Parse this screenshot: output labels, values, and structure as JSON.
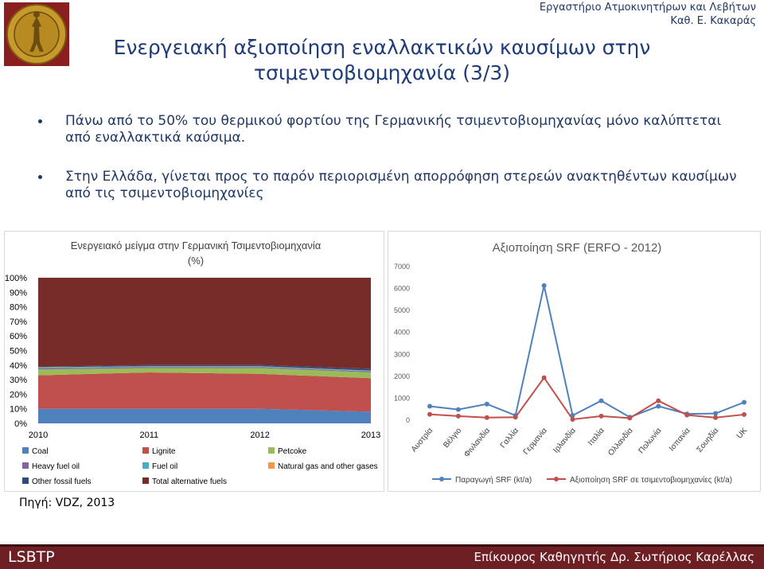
{
  "header": {
    "lab_line1": "Εργαστήριο Ατμοκινητήρων και Λεβήτων",
    "lab_line2": "Καθ. Ε. Κακαράς"
  },
  "title_line1": "Ενεργειακή αξιοποίηση εναλλακτικών καυσίμων στην",
  "title_line2": "τσιμεντοβιομηχανία (3/3)",
  "bullets": [
    "Πάνω από το 50% του θερμικού φορτίου της Γερμανικής τσιμεντοβιομηχανίας μόνο καλύπτεται από εναλλακτικά καύσιμα.",
    "Στην Ελλάδα, γίνεται προς το παρόν περιορισμένη απορρόφηση στερεών ανακτηθέντων καυσίμων από τις τσιμεντοβιομηχανίες"
  ],
  "source": "Πηγή: VDZ, 2013",
  "footer": {
    "left": "LSBTP",
    "right": "Επίκουρος Καθηγητής Δρ. Σωτήριος Καρέλλας"
  },
  "colors": {
    "accent": "#1f3c78",
    "footer_bg": "#6e1f24",
    "coal": "#4f81bd",
    "lignite": "#c0504d",
    "petcoke": "#9bbb59",
    "heavy_fuel_oil": "#8064a2",
    "fuel_oil": "#4bacc6",
    "natural_gas": "#f79646",
    "other_fossil": "#2c4d75",
    "total_alternative": "#772c2a"
  },
  "chart_data": [
    {
      "type": "area",
      "stacked": true,
      "title_line1": "Ενεργειακό μείγμα στην Γερμανική Τσιμεντοβιομηχανία",
      "title_line2": "(%)",
      "x": [
        "2010",
        "2011",
        "2012",
        "2013"
      ],
      "ylim": [
        0,
        100
      ],
      "y_ticks": [
        "0%",
        "10%",
        "20%",
        "30%",
        "40%",
        "50%",
        "60%",
        "70%",
        "80%",
        "90%",
        "100%"
      ],
      "legend_position": "bottom",
      "series": [
        {
          "name": "Coal",
          "color": "#4f81bd",
          "values": [
            10,
            10,
            10,
            8
          ]
        },
        {
          "name": "Lignite",
          "color": "#c0504d",
          "values": [
            23,
            25,
            24,
            23
          ]
        },
        {
          "name": "Petcoke",
          "color": "#9bbb59",
          "values": [
            4,
            3,
            4,
            4
          ]
        },
        {
          "name": "Heavy fuel oil",
          "color": "#8064a2",
          "values": [
            0.8,
            0.6,
            0.6,
            0.6
          ]
        },
        {
          "name": "Fuel oil",
          "color": "#4bacc6",
          "values": [
            0.5,
            0.4,
            0.4,
            0.4
          ]
        },
        {
          "name": "Natural gas and other gases",
          "color": "#f79646",
          "values": [
            0.2,
            0.2,
            0.2,
            0.2
          ]
        },
        {
          "name": "Other fossil fuels",
          "color": "#2c4d75",
          "values": [
            0.5,
            0.8,
            0.8,
            1.3
          ]
        },
        {
          "name": "Total alternative fuels",
          "color": "#772c2a",
          "values": [
            61,
            60,
            60,
            62.5
          ]
        }
      ]
    },
    {
      "type": "line",
      "title": "Αξιοποίηση SRF (ERFO - 2012)",
      "categories": [
        "Αυστρία",
        "Βέλγιο",
        "Φινλανδία",
        "Γαλλία",
        "Γερμανία",
        "Ιρλανδία",
        "Ιταλία",
        "Ολλανδία",
        "Πολωνία",
        "Ισπανία",
        "Σουηδία",
        "UK"
      ],
      "ylim": [
        0,
        7000
      ],
      "y_ticks": [
        "0",
        "1000",
        "2000",
        "3000",
        "4000",
        "5000",
        "6000",
        "7000"
      ],
      "legend_position": "bottom",
      "series": [
        {
          "name": "Παραγωγή SRF  (kt/a)",
          "color": "#4f81bd",
          "values": [
            600,
            450,
            700,
            180,
            6100,
            180,
            850,
            100,
            600,
            250,
            270,
            780
          ]
        },
        {
          "name": "Αξιοποίηση SRF σε τσιμεντοβιομηχανίες  (kt/a)",
          "color": "#c0504d",
          "values": [
            230,
            150,
            80,
            100,
            1900,
            0,
            150,
            60,
            850,
            200,
            80,
            220
          ]
        }
      ]
    }
  ]
}
